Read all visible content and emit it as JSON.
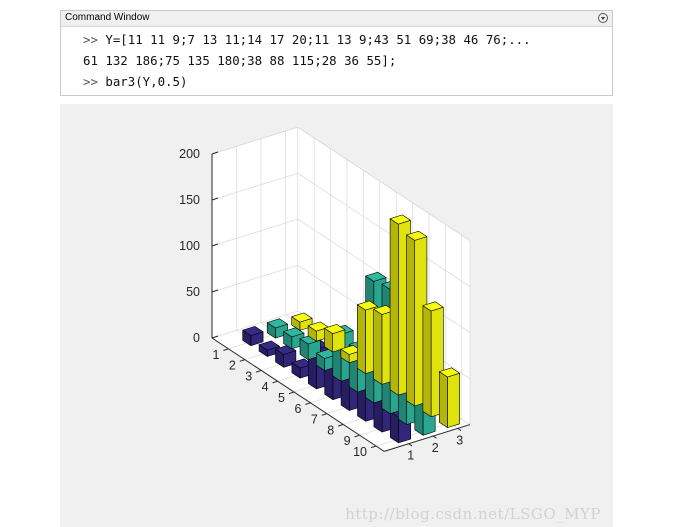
{
  "command_window": {
    "title": "Command Window",
    "lines": [
      {
        "prompt": ">>",
        "text": " Y=[11 11 9;7 13 11;14 17 20;11 13 9;43 51 69;38 46 76;..."
      },
      {
        "prompt": "",
        "text": "61 132 186;75 135 180;38 88 115;28 36 55];"
      },
      {
        "prompt": ">>",
        "text": " bar3(Y,0.5)"
      }
    ]
  },
  "watermark": "http://blog.csdn.net/LSGO_MYP",
  "chart_data": {
    "type": "bar",
    "subtype": "bar3",
    "width": 0.5,
    "row_categories": [
      "1",
      "2",
      "3",
      "4",
      "5",
      "6",
      "7",
      "8",
      "9",
      "10"
    ],
    "column_categories": [
      "1",
      "2",
      "3"
    ],
    "z_ticks": [
      "0",
      "50",
      "100",
      "150",
      "200"
    ],
    "zlim": [
      0,
      200
    ],
    "grid": true,
    "series": [
      {
        "values": [
          11,
          7,
          14,
          11,
          43,
          38,
          61,
          75,
          38,
          28
        ]
      },
      {
        "values": [
          11,
          13,
          17,
          13,
          51,
          46,
          132,
          135,
          88,
          36
        ]
      },
      {
        "values": [
          9,
          11,
          20,
          9,
          69,
          76,
          186,
          180,
          115,
          55
        ]
      }
    ],
    "colors": {
      "series": [
        "#352a87",
        "#2fb8a0",
        "#f9fb0e"
      ],
      "edge": "#000000",
      "axes_background": "#ffffff",
      "grid": "#d9d9d9"
    }
  }
}
